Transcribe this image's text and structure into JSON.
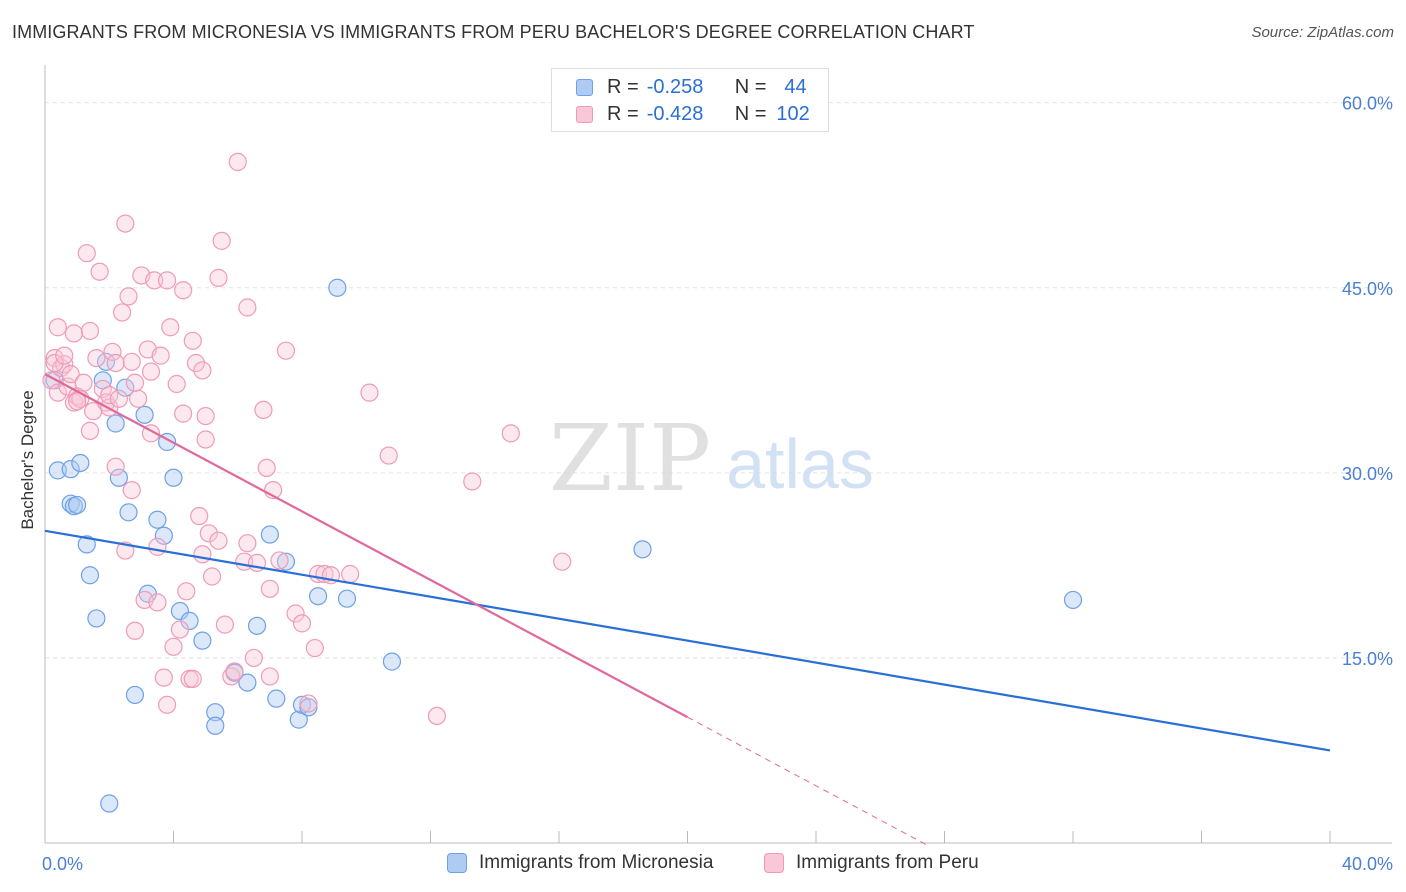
{
  "header": {
    "title": "IMMIGRANTS FROM MICRONESIA VS IMMIGRANTS FROM PERU BACHELOR'S DEGREE CORRELATION CHART",
    "source": "Source: ZipAtlas.com"
  },
  "watermark": {
    "zip": "ZIP",
    "atlas": "atlas"
  },
  "legend": {
    "rows": [
      {
        "r_label": "R =",
        "r_value": "-0.258",
        "n_label": "N =",
        "n_value": "44",
        "color": "#6fa0e8",
        "fill": "#aecbf2"
      },
      {
        "r_label": "R =",
        "r_value": "-0.428",
        "n_label": "N =",
        "n_value": "102",
        "color": "#f09ab8",
        "fill": "#f8c8d8"
      }
    ]
  },
  "bottom_legend": [
    "Immigrants from Micronesia",
    "Immigrants from Peru"
  ],
  "colors": {
    "blue": "#2a6fd6",
    "pink": "#e0689a",
    "blue_point": "#6fa0e8",
    "pink_point": "#f09ab8",
    "tick_label": "#4a7fd4"
  },
  "chart_data": {
    "type": "scatter",
    "ylabel": "Bachelor's Degree",
    "xlim": [
      0,
      40
    ],
    "ylim": [
      0,
      62
    ],
    "x_tick_labels": [
      {
        "value": 0,
        "label": "0.0%"
      },
      {
        "value": 40,
        "label": "40.0%"
      }
    ],
    "y_tick_labels": [
      {
        "value": 15,
        "label": "15.0%"
      },
      {
        "value": 30,
        "label": "30.0%"
      },
      {
        "value": 45,
        "label": "45.0%"
      },
      {
        "value": 60,
        "label": "60.0%"
      }
    ],
    "grid": true,
    "series": [
      {
        "name": "Immigrants from Micronesia",
        "points": [
          [
            0.3,
            37.5
          ],
          [
            0.4,
            30.2
          ],
          [
            0.8,
            27.5
          ],
          [
            0.8,
            30.3
          ],
          [
            0.9,
            27.3
          ],
          [
            1.0,
            27.4
          ],
          [
            1.1,
            30.8
          ],
          [
            1.3,
            24.2
          ],
          [
            1.4,
            21.7
          ],
          [
            1.6,
            18.2
          ],
          [
            1.8,
            37.5
          ],
          [
            1.9,
            39.0
          ],
          [
            2.2,
            34.0
          ],
          [
            2.3,
            29.6
          ],
          [
            2.5,
            36.9
          ],
          [
            2.6,
            26.8
          ],
          [
            2.8,
            12.0
          ],
          [
            3.1,
            34.7
          ],
          [
            3.2,
            20.2
          ],
          [
            3.5,
            26.2
          ],
          [
            3.7,
            24.9
          ],
          [
            3.8,
            32.5
          ],
          [
            4.0,
            29.6
          ],
          [
            4.2,
            18.8
          ],
          [
            4.5,
            18.0
          ],
          [
            4.9,
            16.4
          ],
          [
            5.3,
            10.6
          ],
          [
            5.3,
            9.5
          ],
          [
            5.9,
            13.8
          ],
          [
            6.3,
            13.0
          ],
          [
            6.6,
            17.6
          ],
          [
            7.0,
            25.0
          ],
          [
            7.2,
            11.7
          ],
          [
            7.5,
            22.8
          ],
          [
            7.9,
            10.0
          ],
          [
            8.0,
            11.2
          ],
          [
            8.2,
            11.0
          ],
          [
            8.5,
            20.0
          ],
          [
            9.1,
            45.0
          ],
          [
            9.4,
            19.8
          ],
          [
            10.8,
            14.7
          ],
          [
            18.6,
            23.8
          ],
          [
            32.0,
            19.7
          ],
          [
            2.0,
            3.2
          ]
        ]
      },
      {
        "name": "Immigrants from Peru",
        "points": [
          [
            0.2,
            37.5
          ],
          [
            0.3,
            39.3
          ],
          [
            0.4,
            36.5
          ],
          [
            0.4,
            41.8
          ],
          [
            0.5,
            38.5
          ],
          [
            0.6,
            38.8
          ],
          [
            0.7,
            37.0
          ],
          [
            0.8,
            38.0
          ],
          [
            0.9,
            35.7
          ],
          [
            0.9,
            41.3
          ],
          [
            1.0,
            36.2
          ],
          [
            1.1,
            36.0
          ],
          [
            1.2,
            37.3
          ],
          [
            1.3,
            47.8
          ],
          [
            1.4,
            41.5
          ],
          [
            1.4,
            33.4
          ],
          [
            1.5,
            35.0
          ],
          [
            1.6,
            39.3
          ],
          [
            1.7,
            46.3
          ],
          [
            1.8,
            36.8
          ],
          [
            1.9,
            35.7
          ],
          [
            2.0,
            35.3
          ],
          [
            2.0,
            36.3
          ],
          [
            2.1,
            39.8
          ],
          [
            2.2,
            38.9
          ],
          [
            2.2,
            30.5
          ],
          [
            2.4,
            43.0
          ],
          [
            2.5,
            23.7
          ],
          [
            2.5,
            50.2
          ],
          [
            2.6,
            44.3
          ],
          [
            2.7,
            39.0
          ],
          [
            2.7,
            28.6
          ],
          [
            2.8,
            17.2
          ],
          [
            2.9,
            36.0
          ],
          [
            3.0,
            46.0
          ],
          [
            3.1,
            19.7
          ],
          [
            3.2,
            40.0
          ],
          [
            3.3,
            33.2
          ],
          [
            3.3,
            38.2
          ],
          [
            3.4,
            45.6
          ],
          [
            3.5,
            19.5
          ],
          [
            3.5,
            24.0
          ],
          [
            3.6,
            39.5
          ],
          [
            3.7,
            13.4
          ],
          [
            3.8,
            11.2
          ],
          [
            3.8,
            45.6
          ],
          [
            3.9,
            41.8
          ],
          [
            4.0,
            15.9
          ],
          [
            4.1,
            37.2
          ],
          [
            4.2,
            17.3
          ],
          [
            4.3,
            34.8
          ],
          [
            4.3,
            44.8
          ],
          [
            4.4,
            20.4
          ],
          [
            4.5,
            13.3
          ],
          [
            4.6,
            13.3
          ],
          [
            4.6,
            40.7
          ],
          [
            4.7,
            38.9
          ],
          [
            4.8,
            26.5
          ],
          [
            4.9,
            38.3
          ],
          [
            5.0,
            32.7
          ],
          [
            5.0,
            34.6
          ],
          [
            5.1,
            25.1
          ],
          [
            5.2,
            21.6
          ],
          [
            5.4,
            24.5
          ],
          [
            5.4,
            45.8
          ],
          [
            5.5,
            48.8
          ],
          [
            5.6,
            17.7
          ],
          [
            5.8,
            13.5
          ],
          [
            5.9,
            13.9
          ],
          [
            6.0,
            55.2
          ],
          [
            6.2,
            22.8
          ],
          [
            6.3,
            43.4
          ],
          [
            6.3,
            24.3
          ],
          [
            6.5,
            15.0
          ],
          [
            6.8,
            35.1
          ],
          [
            6.9,
            30.4
          ],
          [
            7.0,
            20.6
          ],
          [
            7.0,
            13.5
          ],
          [
            7.1,
            28.6
          ],
          [
            7.5,
            39.9
          ],
          [
            7.8,
            18.6
          ],
          [
            8.0,
            17.8
          ],
          [
            8.2,
            11.3
          ],
          [
            8.4,
            15.8
          ],
          [
            8.5,
            21.8
          ],
          [
            8.7,
            21.8
          ],
          [
            9.5,
            21.8
          ],
          [
            10.1,
            36.5
          ],
          [
            10.7,
            31.4
          ],
          [
            12.2,
            10.3
          ],
          [
            13.3,
            29.3
          ],
          [
            14.5,
            33.2
          ],
          [
            16.1,
            22.8
          ],
          [
            0.3,
            38.9
          ],
          [
            0.6,
            39.5
          ],
          [
            1.0,
            35.8
          ],
          [
            2.3,
            36.0
          ],
          [
            2.8,
            37.3
          ],
          [
            4.9,
            23.4
          ],
          [
            6.6,
            22.7
          ],
          [
            7.3,
            22.9
          ],
          [
            8.9,
            21.7
          ]
        ]
      }
    ],
    "trend_lines": [
      {
        "series": "Immigrants from Micronesia",
        "x": [
          0,
          40
        ],
        "y": [
          25.3,
          7.5
        ]
      },
      {
        "series": "Immigrants from Peru",
        "x": [
          0,
          20
        ],
        "y": [
          38.0,
          10.2
        ],
        "dashed_extension_x": [
          20,
          27.5
        ]
      }
    ]
  }
}
